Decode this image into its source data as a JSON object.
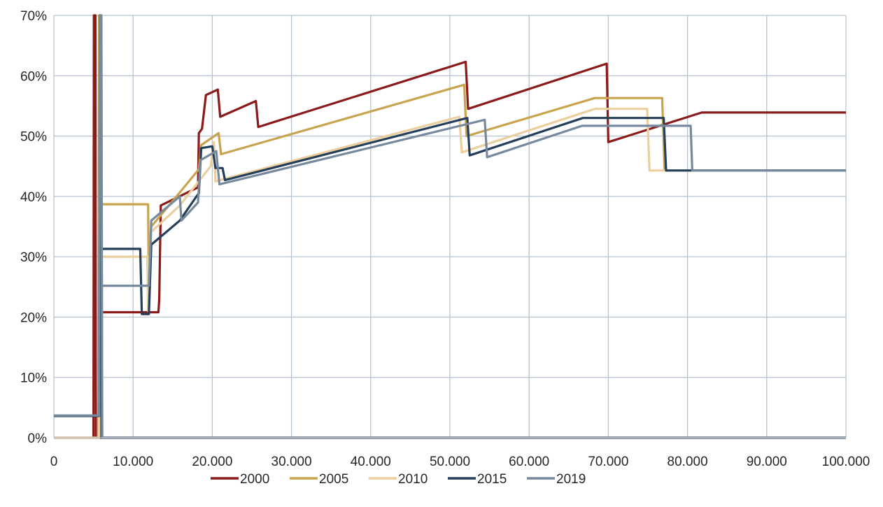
{
  "chart_data": {
    "type": "line",
    "title": "",
    "xlabel": "",
    "ylabel": "",
    "xlim": [
      0,
      100000
    ],
    "ylim": [
      0,
      0.7
    ],
    "x_ticks": [
      "0",
      "10.000",
      "20.000",
      "30.000",
      "40.000",
      "50.000",
      "60.000",
      "70.000",
      "80.000",
      "90.000",
      "100.000"
    ],
    "x_tick_values": [
      0,
      10000,
      20000,
      30000,
      40000,
      50000,
      60000,
      70000,
      80000,
      90000,
      100000
    ],
    "y_ticks": [
      "0%",
      "10%",
      "20%",
      "30%",
      "40%",
      "50%",
      "60%",
      "70%"
    ],
    "y_tick_values": [
      0,
      0.1,
      0.2,
      0.3,
      0.4,
      0.5,
      0.6,
      0.7
    ],
    "grid": true,
    "legend_position": "bottom",
    "series": [
      {
        "name": "2000",
        "color": "#8b1a1a",
        "points": [
          [
            0,
            0
          ],
          [
            5000,
            0
          ],
          [
            5050,
            0.7
          ],
          [
            5250,
            0.7
          ],
          [
            5300,
            0
          ],
          [
            100000,
            0
          ]
        ],
        "rate_points": [
          [
            6000,
            0.208
          ],
          [
            12600,
            0.208
          ],
          [
            13200,
            0.208
          ],
          [
            13300,
            0.23
          ],
          [
            13500,
            0.385
          ],
          [
            18200,
            0.415
          ],
          [
            18300,
            0.505
          ],
          [
            18700,
            0.512
          ],
          [
            19200,
            0.568
          ],
          [
            20700,
            0.577
          ],
          [
            21000,
            0.532
          ],
          [
            25500,
            0.558
          ],
          [
            25800,
            0.515
          ],
          [
            52000,
            0.623
          ],
          [
            52300,
            0.545
          ],
          [
            69800,
            0.62
          ],
          [
            70000,
            0.49
          ],
          [
            81800,
            0.539
          ],
          [
            100000,
            0.539
          ]
        ]
      },
      {
        "name": "2005",
        "color": "#c9a44e",
        "points": [
          [
            0,
            0
          ],
          [
            5600,
            0
          ],
          [
            5700,
            0.7
          ],
          [
            5900,
            0.7
          ],
          [
            6100,
            0
          ],
          [
            100000,
            0
          ]
        ],
        "rate_points": [
          [
            6100,
            0.387
          ],
          [
            11900,
            0.387
          ],
          [
            12000,
            0.22
          ],
          [
            12300,
            0.35
          ],
          [
            15800,
            0.405
          ],
          [
            18300,
            0.445
          ],
          [
            18600,
            0.485
          ],
          [
            20800,
            0.505
          ],
          [
            21100,
            0.47
          ],
          [
            51800,
            0.585
          ],
          [
            52100,
            0.5
          ],
          [
            68300,
            0.563
          ],
          [
            76800,
            0.563
          ],
          [
            77100,
            0.443
          ],
          [
            100000,
            0.443
          ]
        ]
      },
      {
        "name": "2010",
        "color": "#ebcf9f",
        "points": [
          [
            0,
            0
          ],
          [
            5700,
            0
          ],
          [
            5800,
            0.7
          ],
          [
            6000,
            0.7
          ],
          [
            6100,
            0
          ],
          [
            100000,
            0
          ]
        ],
        "rate_points": [
          [
            6100,
            0.3
          ],
          [
            11800,
            0.3
          ],
          [
            11900,
            0.21
          ],
          [
            12200,
            0.34
          ],
          [
            15900,
            0.385
          ],
          [
            19800,
            0.45
          ],
          [
            20200,
            0.49
          ],
          [
            20400,
            0.425
          ],
          [
            51200,
            0.532
          ],
          [
            51500,
            0.473
          ],
          [
            68300,
            0.545
          ],
          [
            74900,
            0.545
          ],
          [
            75200,
            0.443
          ],
          [
            100000,
            0.443
          ]
        ]
      },
      {
        "name": "2015",
        "color": "#243f5a",
        "points": [
          [
            0,
            0.036
          ],
          [
            5700,
            0.036
          ],
          [
            5800,
            0.7
          ],
          [
            5950,
            0.7
          ],
          [
            6000,
            0
          ],
          [
            100000,
            0
          ]
        ],
        "rate_points": [
          [
            6000,
            0.313
          ],
          [
            10900,
            0.313
          ],
          [
            11100,
            0.205
          ],
          [
            12000,
            0.205
          ],
          [
            12300,
            0.32
          ],
          [
            15900,
            0.36
          ],
          [
            18000,
            0.4
          ],
          [
            18300,
            0.405
          ],
          [
            18600,
            0.48
          ],
          [
            20000,
            0.483
          ],
          [
            20400,
            0.447
          ],
          [
            21300,
            0.447
          ],
          [
            21600,
            0.427
          ],
          [
            52200,
            0.53
          ],
          [
            52500,
            0.468
          ],
          [
            66800,
            0.53
          ],
          [
            77000,
            0.53
          ],
          [
            77300,
            0.443
          ],
          [
            100000,
            0.443
          ]
        ]
      },
      {
        "name": "2019",
        "color": "#778a9d",
        "points": [
          [
            0,
            0.037
          ],
          [
            5700,
            0.037
          ],
          [
            5800,
            0.7
          ],
          [
            6000,
            0.7
          ],
          [
            6100,
            0
          ],
          [
            100000,
            0
          ]
        ],
        "rate_points": [
          [
            6100,
            0.252
          ],
          [
            12000,
            0.252
          ],
          [
            12300,
            0.36
          ],
          [
            15900,
            0.4
          ],
          [
            16100,
            0.36
          ],
          [
            18200,
            0.39
          ],
          [
            18500,
            0.46
          ],
          [
            20500,
            0.475
          ],
          [
            20900,
            0.42
          ],
          [
            54400,
            0.527
          ],
          [
            54700,
            0.465
          ],
          [
            66700,
            0.517
          ],
          [
            80400,
            0.517
          ],
          [
            80600,
            0.443
          ],
          [
            100000,
            0.443
          ]
        ]
      }
    ]
  }
}
